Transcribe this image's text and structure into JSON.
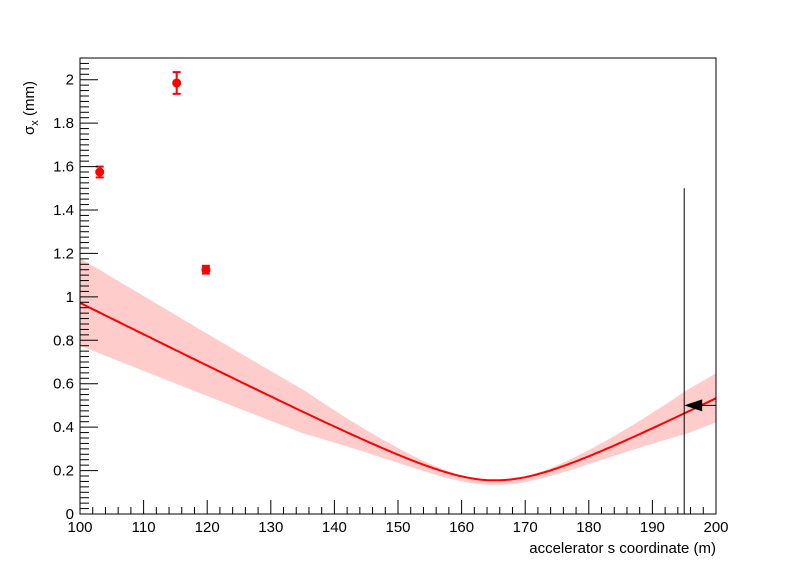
{
  "chart_data": {
    "type": "line",
    "title": "",
    "xlabel": "accelerator s coordinate (m)",
    "ylabel_main": "σ",
    "ylabel_sub": "x",
    "ylabel_unit": " (mm)",
    "xlim": [
      100,
      200
    ],
    "ylim": [
      0,
      2.1
    ],
    "x_ticks": [
      100,
      110,
      120,
      130,
      140,
      150,
      160,
      170,
      180,
      190,
      200
    ],
    "y_ticks": [
      0,
      0.2,
      0.4,
      0.6,
      0.8,
      1,
      1.2,
      1.4,
      1.6,
      1.8,
      2
    ],
    "x_tick_labels": [
      "100",
      "110",
      "120",
      "130",
      "140",
      "150",
      "160",
      "170",
      "180",
      "190",
      "200"
    ],
    "y_tick_labels": [
      "0",
      "0.2",
      "0.4",
      "0.6",
      "0.8",
      "1",
      "1.2",
      "1.4",
      "1.6",
      "1.8",
      "2"
    ],
    "grid": false,
    "series": [
      {
        "kind": "fit",
        "color": "#ff0000",
        "band_color": "#ffcccc",
        "beta_star": 1.47,
        "s_waist": 165.3,
        "sigma_min": 0.155,
        "band_sigma_min": 0.135,
        "band_relative_halfwidth": 0.2
      },
      {
        "kind": "measurements",
        "color": "#ff0000",
        "points": [
          {
            "x": 103.1,
            "y": 1.575,
            "yerr": 0.025
          },
          {
            "x": 115.2,
            "y": 1.985,
            "yerr": 0.05
          },
          {
            "x": 119.8,
            "y": 1.125,
            "yerr": 0.018
          }
        ]
      }
    ],
    "markers": {
      "vertical_line": {
        "x": 195,
        "y_top": 1.5
      },
      "arrow": {
        "x_from": 200,
        "x_to": 195,
        "y": 0.5
      },
      "color": "#000000"
    }
  }
}
